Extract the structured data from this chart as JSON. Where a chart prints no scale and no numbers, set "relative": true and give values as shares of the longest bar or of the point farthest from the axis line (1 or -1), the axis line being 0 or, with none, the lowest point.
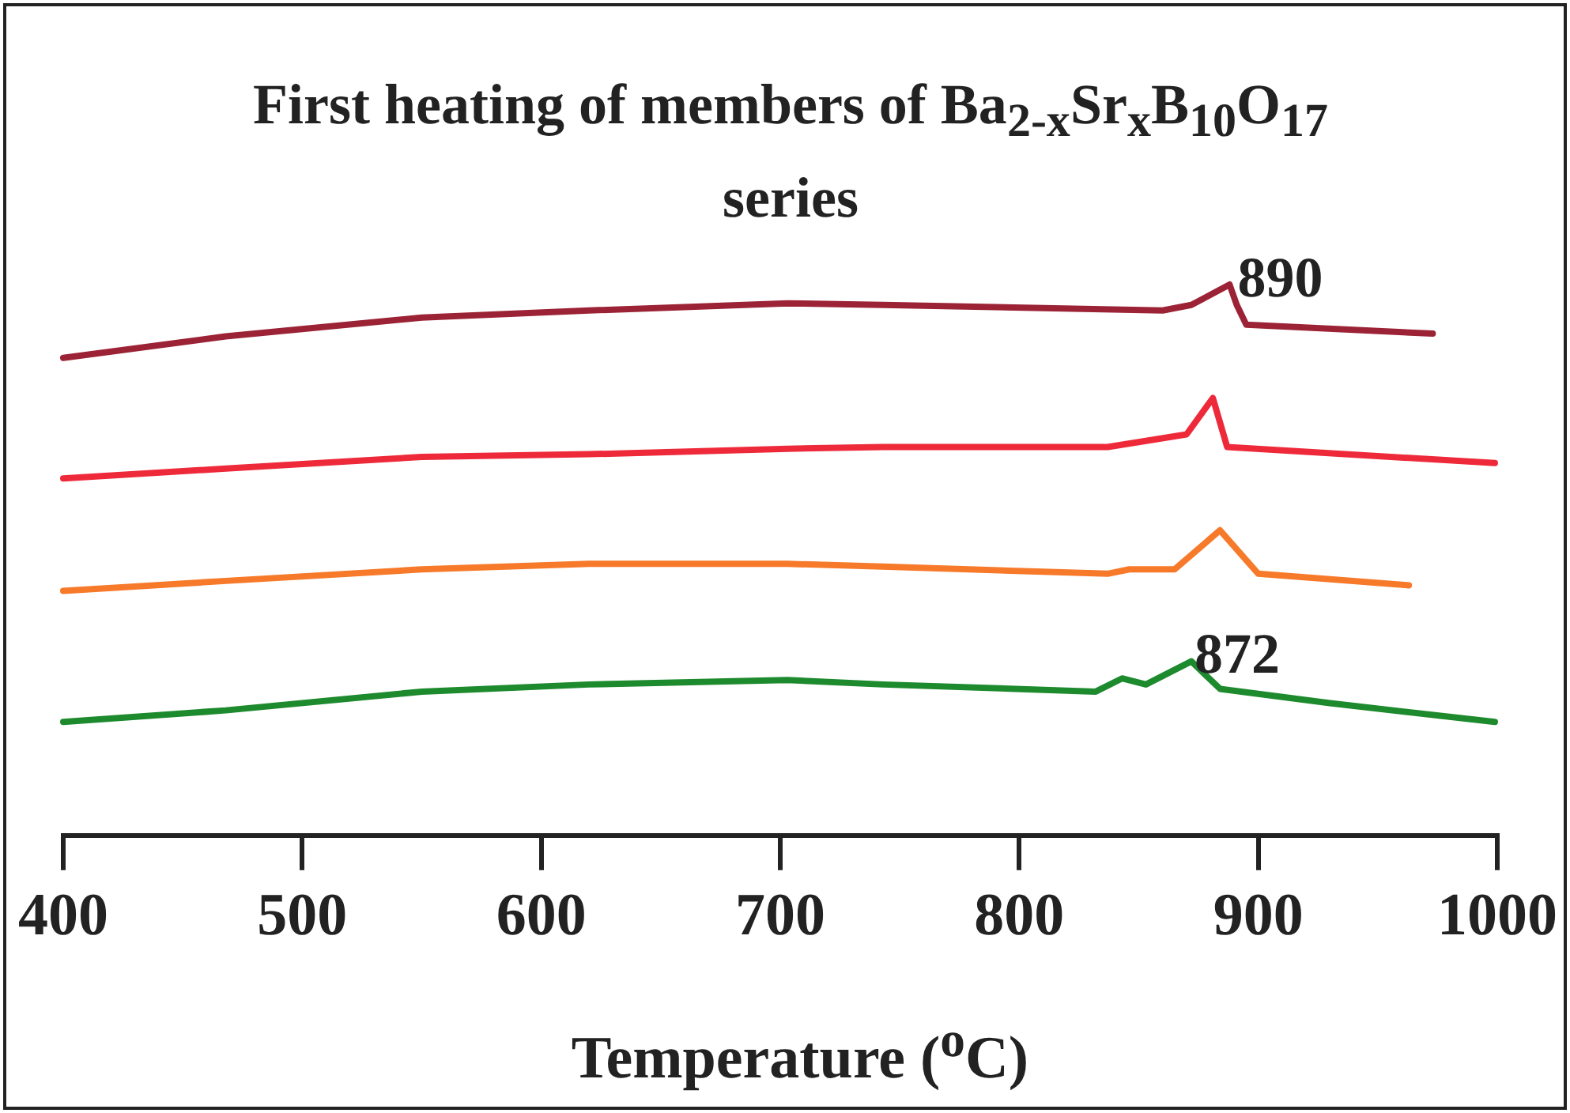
{
  "chart_data": {
    "type": "line",
    "title": "First heating of members of Ba$_{2-x}$Sr$_{x}$B$_{10}$O$_{17}$ series",
    "xlabel": "Temperature ($^{o}$C)",
    "relative": true,
    "xlim": [
      400,
      1000
    ],
    "xticks": [
      400,
      500,
      600,
      700,
      800,
      900,
      1000
    ],
    "grid": false,
    "series": [
      {
        "color": "#9b2335",
        "x": [
          400,
          468,
          550,
          620,
          703,
          743,
          860,
          872,
          888,
          891,
          895,
          973
        ],
        "values": [
          0.867,
          0.906,
          0.94,
          0.953,
          0.966,
          0.963,
          0.953,
          0.963,
          1.0,
          0.963,
          0.927,
          0.911
        ]
      },
      {
        "color": "#ee2a3a",
        "x": [
          400,
          468,
          550,
          620,
          703,
          743,
          837,
          870,
          881,
          887,
          999
        ],
        "values": [
          0.648,
          0.666,
          0.687,
          0.692,
          0.702,
          0.705,
          0.705,
          0.728,
          0.794,
          0.705,
          0.676
        ]
      },
      {
        "color": "#f7792a",
        "x": [
          400,
          468,
          550,
          620,
          703,
          743,
          837,
          846,
          865,
          884,
          900,
          963
        ],
        "values": [
          0.444,
          0.462,
          0.483,
          0.493,
          0.493,
          0.488,
          0.475,
          0.483,
          0.483,
          0.554,
          0.475,
          0.454
        ]
      },
      {
        "color": "#1e8a2e",
        "x": [
          400,
          468,
          550,
          620,
          703,
          743,
          832,
          843,
          853,
          872,
          884,
          930,
          999
        ],
        "values": [
          0.206,
          0.227,
          0.261,
          0.274,
          0.282,
          0.274,
          0.261,
          0.285,
          0.274,
          0.316,
          0.266,
          0.24,
          0.206
        ]
      }
    ],
    "annotations": [
      {
        "text": "890",
        "x": 890,
        "y": 1.0
      },
      {
        "text": "872",
        "x": 872,
        "y": 0.316
      }
    ]
  }
}
